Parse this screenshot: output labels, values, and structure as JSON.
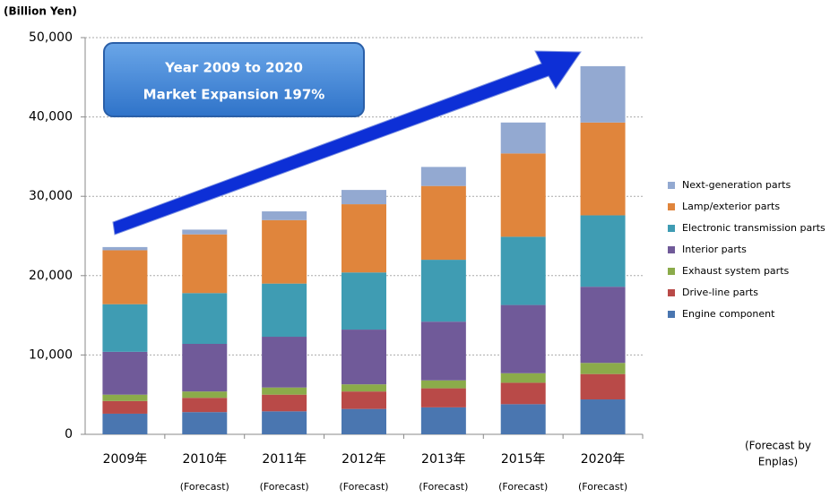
{
  "chart_data": {
    "type": "stacked_bar",
    "y_unit": "(Billion Yen)",
    "categories": [
      "2009年",
      "2010年",
      "2011年",
      "2012年",
      "2013年",
      "2015年",
      "2020年"
    ],
    "x_sublabels": [
      null,
      "(Forecast)",
      "(Forecast)",
      "(Forecast)",
      "(Forecast)",
      "(Forecast)",
      "(Forecast)"
    ],
    "series": [
      {
        "name": "Engine component",
        "color": "#4a76b0",
        "values": [
          2600,
          2800,
          2900,
          3200,
          3400,
          3800,
          4400
        ]
      },
      {
        "name": "Drive-line parts",
        "color": "#b94a48",
        "values": [
          1600,
          1800,
          2100,
          2200,
          2400,
          2700,
          3200
        ]
      },
      {
        "name": "Exhaust system parts",
        "color": "#8bab4a",
        "values": [
          800,
          800,
          900,
          900,
          1000,
          1200,
          1400
        ]
      },
      {
        "name": "Interior parts",
        "color": "#705a99",
        "values": [
          5400,
          6000,
          6400,
          6900,
          7400,
          8600,
          9600
        ]
      },
      {
        "name": "Electronic transmission parts",
        "color": "#3f9cb3",
        "values": [
          6000,
          6400,
          6700,
          7200,
          7800,
          8600,
          9000
        ]
      },
      {
        "name": "Lamp/exterior parts",
        "color": "#e0853c",
        "values": [
          6800,
          7400,
          8000,
          8600,
          9300,
          10500,
          11700
        ]
      },
      {
        "name": "Next-generation parts",
        "color": "#93a9d1",
        "values": [
          400,
          600,
          1100,
          1800,
          2400,
          3900,
          7100
        ]
      }
    ],
    "ylim": [
      0,
      50000
    ],
    "yticks": [
      0,
      {
        "value": 10000,
        "label": "10,000"
      },
      {
        "value": 20000,
        "label": "20,000"
      },
      {
        "value": 30000,
        "label": "30,000"
      },
      {
        "value": 40000,
        "label": "40,000"
      },
      {
        "value": 50000,
        "label": "50,000"
      }
    ],
    "grid": true,
    "legend_position": "right",
    "callout": [
      "Year 2009 to 2020",
      "Market Expansion 197%"
    ],
    "note": [
      "(Forecast by",
      "Enplas)"
    ]
  }
}
